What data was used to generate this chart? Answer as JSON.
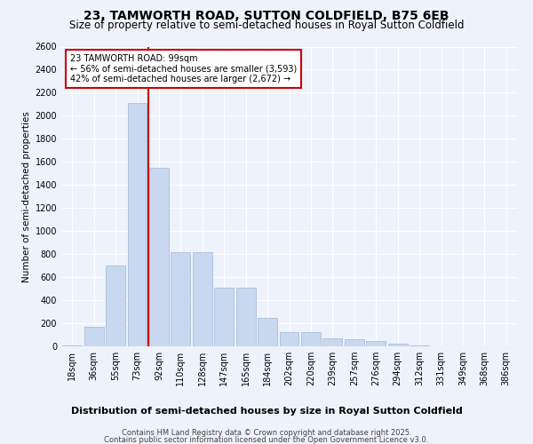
{
  "title": "23, TAMWORTH ROAD, SUTTON COLDFIELD, B75 6EB",
  "subtitle": "Size of property relative to semi-detached houses in Royal Sutton Coldfield",
  "xlabel": "Distribution of semi-detached houses by size in Royal Sutton Coldfield",
  "ylabel": "Number of semi-detached properties",
  "categories": [
    "18sqm",
    "36sqm",
    "55sqm",
    "73sqm",
    "92sqm",
    "110sqm",
    "128sqm",
    "147sqm",
    "165sqm",
    "184sqm",
    "202sqm",
    "220sqm",
    "239sqm",
    "257sqm",
    "276sqm",
    "294sqm",
    "312sqm",
    "331sqm",
    "349sqm",
    "368sqm",
    "386sqm"
  ],
  "values": [
    10,
    170,
    700,
    2110,
    1550,
    820,
    820,
    510,
    510,
    250,
    120,
    120,
    70,
    65,
    50,
    20,
    5,
    2,
    2,
    1,
    2
  ],
  "bar_color": "#c8d8ee",
  "bar_edge_color": "#a0b8d8",
  "vline_x": 3.5,
  "vline_color": "#cc0000",
  "annotation_lines": [
    "23 TAMWORTH ROAD: 99sqm",
    "← 56% of semi-detached houses are smaller (3,593)",
    "42% of semi-detached houses are larger (2,672) →"
  ],
  "annotation_box_color": "#cc0000",
  "ylim": [
    0,
    2600
  ],
  "yticks": [
    0,
    200,
    400,
    600,
    800,
    1000,
    1200,
    1400,
    1600,
    1800,
    2000,
    2200,
    2400,
    2600
  ],
  "background_color": "#eef2fa",
  "grid_color": "#ffffff",
  "footer_line1": "Contains HM Land Registry data © Crown copyright and database right 2025.",
  "footer_line2": "Contains public sector information licensed under the Open Government Licence v3.0.",
  "title_fontsize": 10,
  "subtitle_fontsize": 8.5,
  "xlabel_fontsize": 8,
  "ylabel_fontsize": 7.5,
  "tick_fontsize": 7,
  "footer_fontsize": 6
}
